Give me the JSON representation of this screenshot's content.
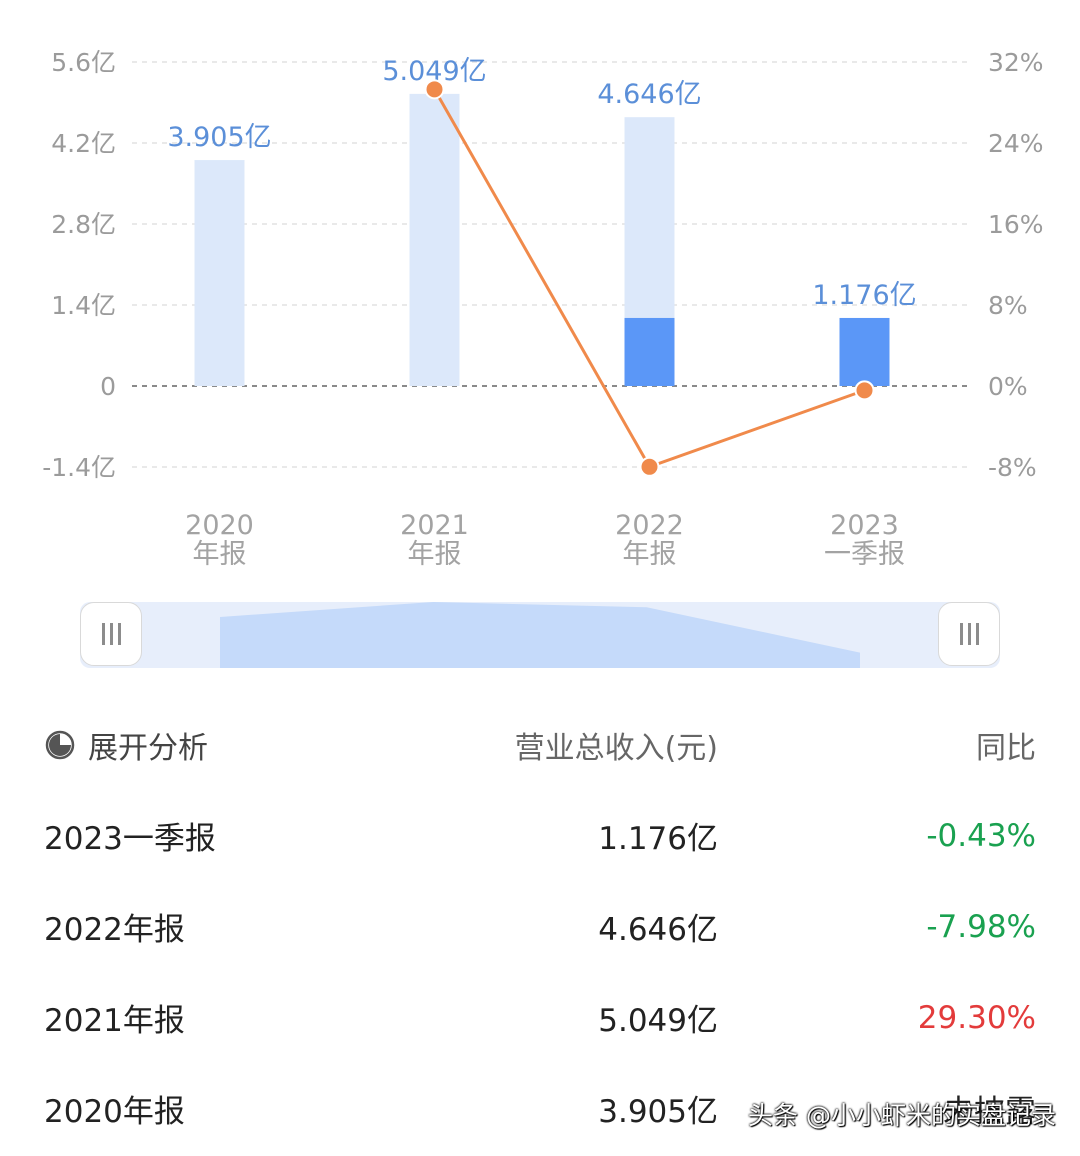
{
  "chart_data": {
    "type": "bar+line",
    "categories": [
      {
        "line1": "2020",
        "line2": "年报"
      },
      {
        "line1": "2021",
        "line2": "年报"
      },
      {
        "line1": "2022",
        "line2": "年报"
      },
      {
        "line1": "2023",
        "line2": "一季报"
      }
    ],
    "bars": {
      "values": [
        3.905,
        5.049,
        4.646,
        1.176
      ],
      "labels": [
        "3.905亿",
        "5.049亿",
        "4.646亿",
        "1.176亿"
      ],
      "highlight_values": [
        null,
        null,
        1.176,
        1.176
      ],
      "color": "#dce8fa",
      "highlight_color": "#5b97f7"
    },
    "line": {
      "values": [
        null,
        29.3,
        -7.98,
        -0.43
      ],
      "color": "#f08a4b"
    },
    "left_axis": {
      "ticks": [
        5.6,
        4.2,
        2.8,
        1.4,
        0,
        -1.4
      ],
      "tick_labels": [
        "5.6亿",
        "4.2亿",
        "2.8亿",
        "1.4亿",
        "0",
        "-1.4亿"
      ],
      "range": [
        -1.4,
        5.6
      ]
    },
    "right_axis": {
      "ticks": [
        32,
        24,
        16,
        8,
        0,
        -8
      ],
      "tick_labels": [
        "32%",
        "24%",
        "16%",
        "8%",
        "0%",
        "-8%"
      ],
      "range": [
        -8,
        32
      ]
    },
    "grid": true
  },
  "slider": {
    "left_handle_icon": "grip-icon",
    "right_handle_icon": "grip-icon"
  },
  "table": {
    "header": {
      "col1": "展开分析",
      "col1_icon": "pie-chart-icon",
      "col2": "营业总收入(元)",
      "col3": "同比"
    },
    "rows": [
      {
        "period": "2023一季报",
        "revenue": "1.176亿",
        "yoy": "-0.43%",
        "trend": "down"
      },
      {
        "period": "2022年报",
        "revenue": "4.646亿",
        "yoy": "-7.98%",
        "trend": "down"
      },
      {
        "period": "2021年报",
        "revenue": "5.049亿",
        "yoy": "29.30%",
        "trend": "up"
      },
      {
        "period": "2020年报",
        "revenue": "3.905亿",
        "yoy": "未披露",
        "trend": "none"
      }
    ]
  },
  "watermark": "头条 @小小虾米的实盘记录",
  "colors": {
    "up": "#e33b3b",
    "down": "#1aa150",
    "accent": "#5b97f7"
  }
}
